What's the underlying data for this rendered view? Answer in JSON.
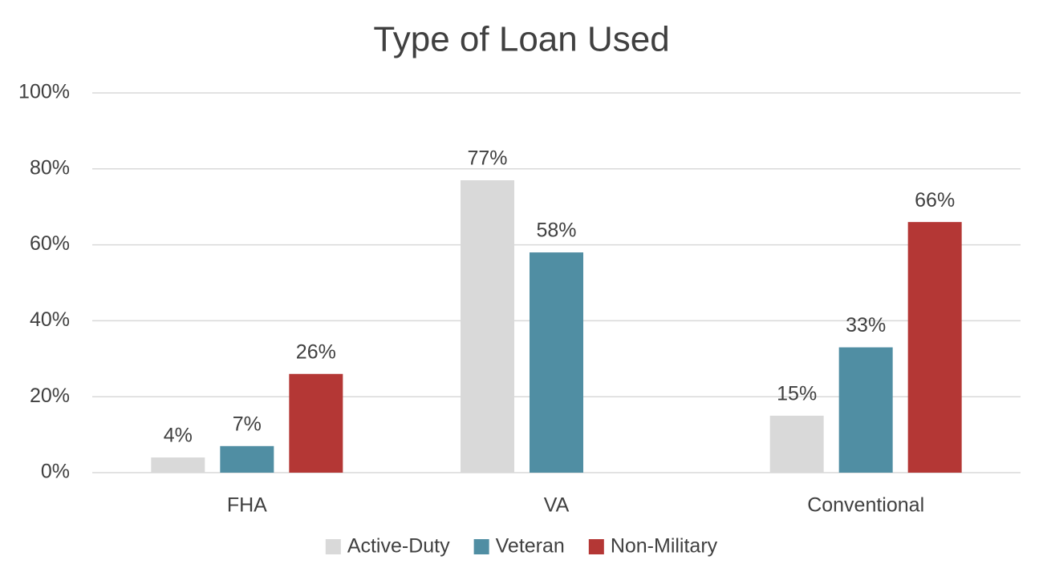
{
  "chart_data": {
    "type": "bar",
    "title": "Type of Loan Used",
    "categories": [
      "FHA",
      "VA",
      "Conventional"
    ],
    "series": [
      {
        "name": "Active-Duty",
        "color": "#d9d9d9",
        "values": [
          4,
          77,
          15
        ],
        "value_labels": [
          "4%",
          "77%",
          "15%"
        ]
      },
      {
        "name": "Veteran",
        "color": "#508ea3",
        "values": [
          7,
          58,
          33
        ],
        "value_labels": [
          "7%",
          "58%",
          "33%"
        ]
      },
      {
        "name": "Non-Military",
        "color": "#b43735",
        "values": [
          26,
          null,
          66
        ],
        "value_labels": [
          "26%",
          null,
          "66%"
        ]
      }
    ],
    "ylim": [
      0,
      100
    ],
    "yticks": [
      {
        "value": 0,
        "label": "0%"
      },
      {
        "value": 20,
        "label": "20%"
      },
      {
        "value": 40,
        "label": "40%"
      },
      {
        "value": 60,
        "label": "60%"
      },
      {
        "value": 80,
        "label": "80%"
      },
      {
        "value": 100,
        "label": "100%"
      }
    ],
    "grid": true,
    "legend": "bottom"
  }
}
